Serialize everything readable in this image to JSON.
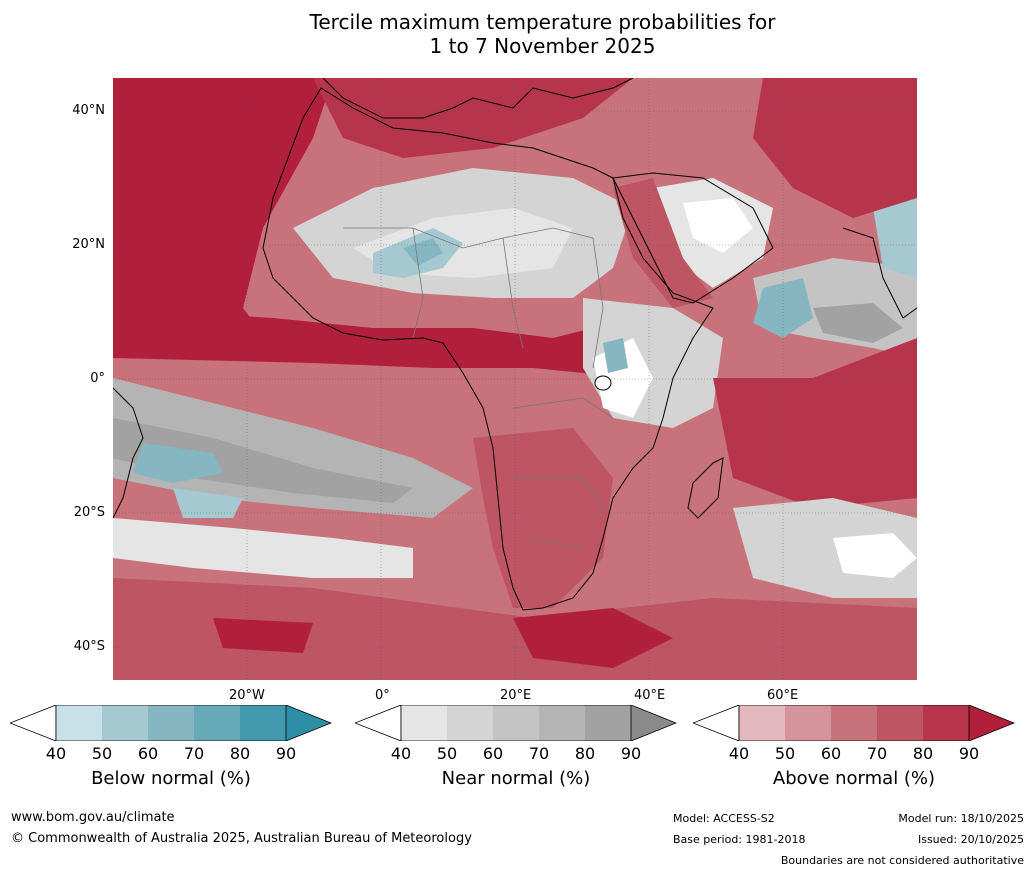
{
  "title_line1": "Tercile maximum temperature probabilities for",
  "title_line2": "1 to 7 November 2025",
  "lat_labels": [
    "40°N",
    "20°N",
    "0°",
    "20°S",
    "40°S"
  ],
  "lon_labels": [
    "20°W",
    "0°",
    "20°E",
    "40°E",
    "60°E"
  ],
  "colorbars": [
    {
      "label": "Below normal (%)",
      "ticks": [
        "40",
        "50",
        "60",
        "70",
        "80",
        "90"
      ],
      "colors": [
        "#ffffff",
        "#c8e1e8",
        "#a6c8d0",
        "#86b6c2",
        "#66a9b7",
        "#4299ae",
        "#2c8fa6"
      ]
    },
    {
      "label": "Near normal (%)",
      "ticks": [
        "40",
        "50",
        "60",
        "70",
        "80",
        "90"
      ],
      "colors": [
        "#ffffff",
        "#e5e5e5",
        "#d4d4d4",
        "#c4c4c4",
        "#b4b4b4",
        "#a2a2a2",
        "#8a8a8a"
      ]
    },
    {
      "label": "Above normal (%)",
      "ticks": [
        "40",
        "50",
        "60",
        "70",
        "80",
        "90"
      ],
      "colors": [
        "#ffffff",
        "#e3b8bf",
        "#d5939b",
        "#c8727c",
        "#bd5563",
        "#b6354a",
        "#b21f3a"
      ]
    }
  ],
  "footer": {
    "website": "www.bom.gov.au/climate",
    "copyright": "© Commonwealth of Australia 2025, Australian Bureau of Meteorology",
    "model": "Model: ACCESS-S2",
    "base_period": "Base period: 1981-2018",
    "model_run": "Model run: 18/10/2025",
    "issued": "Issued: 20/10/2025",
    "disclaimer": "Boundaries are not considered authoritative"
  }
}
